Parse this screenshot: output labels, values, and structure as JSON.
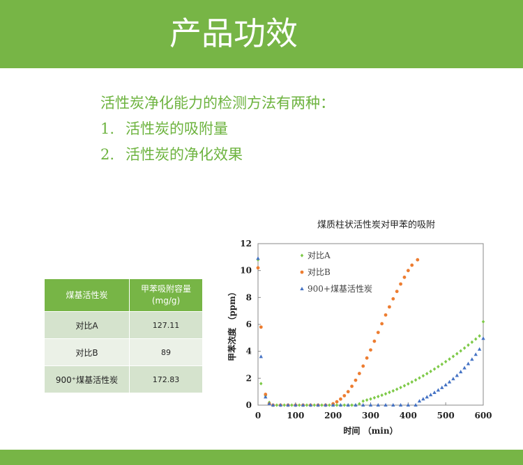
{
  "header": {
    "title": "产品功效"
  },
  "methods": {
    "intro": "活性炭净化能力的检测方法有两种：",
    "items": [
      {
        "num": "1.",
        "text": "活性炭的吸附量"
      },
      {
        "num": "2.",
        "text": "活性炭的净化效果"
      }
    ]
  },
  "table": {
    "headers": [
      "煤基活性炭",
      "甲苯吸附容量",
      "(mg/g)"
    ],
    "rows": [
      {
        "name": "对比A",
        "value": "127.11"
      },
      {
        "name": "对比B",
        "value": "89"
      },
      {
        "name": "900⁺煤基活性炭",
        "value": "172.83"
      }
    ]
  },
  "chart_data": {
    "type": "scatter",
    "title": "煤质柱状活性炭对甲苯的吸附",
    "xlabel": "时间 （min）",
    "ylabel": "甲苯浓度 （ppm）",
    "xlim": [
      0,
      600
    ],
    "ylim": [
      0,
      12
    ],
    "xticks": [
      0,
      100,
      200,
      300,
      400,
      500,
      600
    ],
    "yticks": [
      0,
      2,
      4,
      6,
      8,
      10,
      12
    ],
    "legend_position": "top-left",
    "grid": false,
    "series": [
      {
        "name": "对比A",
        "color": "#7dc947",
        "marker": "diamond",
        "points": [
          [
            0,
            10.8
          ],
          [
            8,
            1.6
          ],
          [
            20,
            0.7
          ],
          [
            30,
            0.2
          ],
          [
            40,
            0
          ],
          [
            50,
            0
          ],
          [
            60,
            0
          ],
          [
            70,
            0
          ],
          [
            80,
            0
          ],
          [
            90,
            0
          ],
          [
            100,
            0
          ],
          [
            110,
            0
          ],
          [
            120,
            0
          ],
          [
            130,
            0
          ],
          [
            140,
            0
          ],
          [
            150,
            0
          ],
          [
            160,
            0
          ],
          [
            170,
            0
          ],
          [
            180,
            0
          ],
          [
            190,
            0
          ],
          [
            200,
            0
          ],
          [
            210,
            0
          ],
          [
            220,
            0
          ],
          [
            230,
            0
          ],
          [
            240,
            0
          ],
          [
            250,
            0
          ],
          [
            260,
            0
          ],
          [
            270,
            0.1
          ],
          [
            280,
            0.3
          ],
          [
            290,
            0.38
          ],
          [
            300,
            0.46
          ],
          [
            310,
            0.55
          ],
          [
            320,
            0.64
          ],
          [
            330,
            0.74
          ],
          [
            340,
            0.84
          ],
          [
            350,
            0.95
          ],
          [
            360,
            1.06
          ],
          [
            370,
            1.18
          ],
          [
            380,
            1.31
          ],
          [
            390,
            1.44
          ],
          [
            400,
            1.58
          ],
          [
            410,
            1.72
          ],
          [
            420,
            1.87
          ],
          [
            430,
            2.02
          ],
          [
            440,
            2.18
          ],
          [
            450,
            2.34
          ],
          [
            460,
            2.51
          ],
          [
            470,
            2.68
          ],
          [
            480,
            2.86
          ],
          [
            490,
            3.04
          ],
          [
            500,
            3.23
          ],
          [
            510,
            3.42
          ],
          [
            520,
            3.62
          ],
          [
            530,
            3.82
          ],
          [
            540,
            4.03
          ],
          [
            550,
            4.24
          ],
          [
            560,
            4.46
          ],
          [
            570,
            4.68
          ],
          [
            580,
            4.91
          ],
          [
            590,
            5.14
          ],
          [
            600,
            6.2
          ]
        ]
      },
      {
        "name": "对比B",
        "color": "#ed7d31",
        "marker": "circle",
        "points": [
          [
            0,
            10.2
          ],
          [
            8,
            5.8
          ],
          [
            20,
            0.8
          ],
          [
            30,
            0.1
          ],
          [
            40,
            0
          ],
          [
            60,
            0
          ],
          [
            80,
            0
          ],
          [
            100,
            0
          ],
          [
            120,
            0
          ],
          [
            140,
            0
          ],
          [
            160,
            0
          ],
          [
            180,
            0
          ],
          [
            200,
            0.1
          ],
          [
            210,
            0.25
          ],
          [
            220,
            0.45
          ],
          [
            230,
            0.7
          ],
          [
            240,
            1.0
          ],
          [
            250,
            1.4
          ],
          [
            260,
            1.85
          ],
          [
            270,
            2.35
          ],
          [
            280,
            2.9
          ],
          [
            290,
            3.5
          ],
          [
            300,
            4.1
          ],
          [
            310,
            4.75
          ],
          [
            320,
            5.4
          ],
          [
            330,
            6.05
          ],
          [
            340,
            6.7
          ],
          [
            350,
            7.3
          ],
          [
            360,
            7.9
          ],
          [
            370,
            8.45
          ],
          [
            380,
            9.0
          ],
          [
            390,
            9.5
          ],
          [
            400,
            10.0
          ],
          [
            410,
            10.4
          ],
          [
            425,
            10.8
          ]
        ]
      },
      {
        "name": "900+煤基活性炭",
        "color": "#4472c4",
        "marker": "triangle",
        "points": [
          [
            0,
            10.9
          ],
          [
            8,
            3.6
          ],
          [
            20,
            0.6
          ],
          [
            30,
            0.1
          ],
          [
            40,
            0
          ],
          [
            60,
            0
          ],
          [
            80,
            0
          ],
          [
            100,
            0
          ],
          [
            120,
            0
          ],
          [
            140,
            0
          ],
          [
            160,
            0
          ],
          [
            180,
            0
          ],
          [
            200,
            0
          ],
          [
            220,
            0
          ],
          [
            240,
            0
          ],
          [
            260,
            0
          ],
          [
            280,
            0
          ],
          [
            300,
            0
          ],
          [
            320,
            0
          ],
          [
            340,
            0
          ],
          [
            360,
            0
          ],
          [
            380,
            0
          ],
          [
            400,
            0
          ],
          [
            420,
            0
          ],
          [
            430,
            0.3
          ],
          [
            440,
            0.45
          ],
          [
            450,
            0.6
          ],
          [
            460,
            0.76
          ],
          [
            470,
            0.93
          ],
          [
            480,
            1.11
          ],
          [
            490,
            1.3
          ],
          [
            500,
            1.5
          ],
          [
            510,
            1.72
          ],
          [
            520,
            1.95
          ],
          [
            530,
            2.2
          ],
          [
            540,
            2.47
          ],
          [
            550,
            2.76
          ],
          [
            560,
            3.07
          ],
          [
            570,
            3.4
          ],
          [
            580,
            3.76
          ],
          [
            590,
            4.15
          ],
          [
            600,
            4.95
          ]
        ]
      }
    ]
  }
}
